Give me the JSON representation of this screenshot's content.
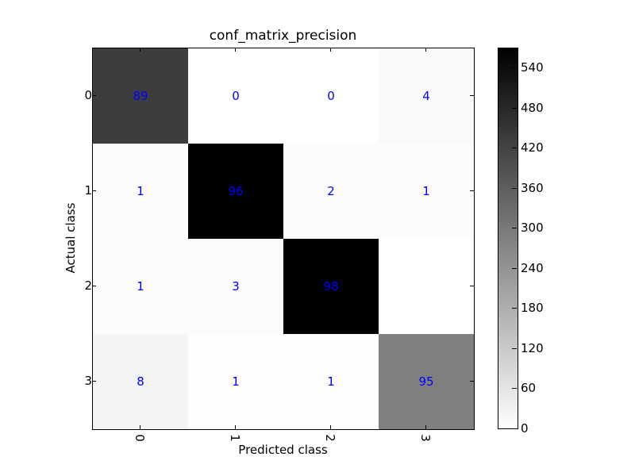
{
  "chart_data": {
    "type": "heatmap",
    "title": "conf_matrix_precision",
    "xlabel": "Predicted class",
    "ylabel": "Actual class",
    "x_tick_labels": [
      "0",
      "1",
      "2",
      "3"
    ],
    "y_tick_labels": [
      "0",
      "1",
      "2",
      "3"
    ],
    "cell_labels": [
      [
        "89",
        "0",
        "0",
        "4"
      ],
      [
        "1",
        "96",
        "2",
        "1"
      ],
      [
        "1",
        "3",
        "98",
        ""
      ],
      [
        "8",
        "1",
        "1",
        "95"
      ]
    ],
    "cell_colors": [
      [
        "#3d3d3d",
        "#ffffff",
        "#ffffff",
        "#fafafa"
      ],
      [
        "#fcfcfc",
        "#000000",
        "#fcfcfc",
        "#fcfcfc"
      ],
      [
        "#fcfcfc",
        "#fbfbfb",
        "#000000",
        "#ffffff"
      ],
      [
        "#f4f4f4",
        "#fdfdfd",
        "#fefefe",
        "#808080"
      ]
    ],
    "colormap": "gray_r",
    "colorbar": {
      "range": [
        0,
        570
      ],
      "ticks": [
        "0",
        "60",
        "120",
        "180",
        "240",
        "300",
        "360",
        "420",
        "480",
        "540"
      ]
    },
    "label_color": "#0000ff"
  }
}
